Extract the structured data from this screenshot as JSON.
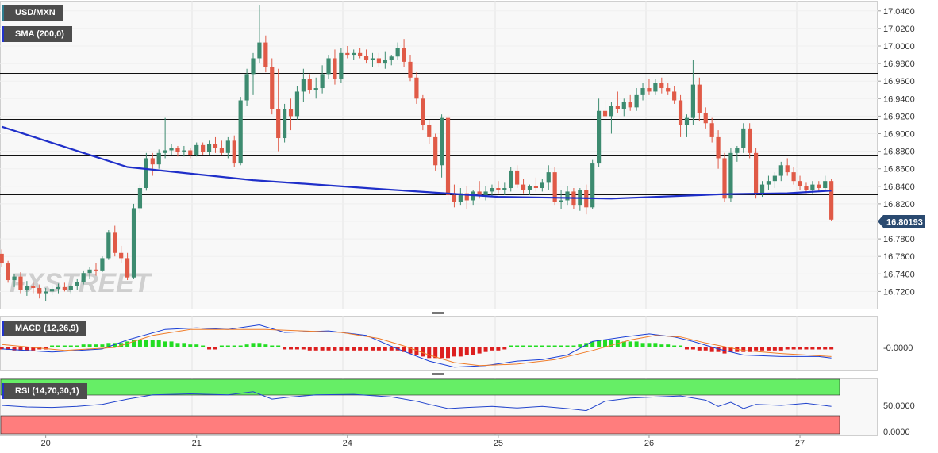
{
  "instrument": "USD/MXN",
  "colors": {
    "bull": "#3d8b70",
    "bear": "#e05a47",
    "sma": "#1f2fc9",
    "macd_line": "#1a3fd6",
    "signal_line": "#f07d2a",
    "hist_pos": "#22dd22",
    "hist_neg": "#dd1f1f",
    "rsi_line": "#2244cc",
    "rsi_upper": "#66ee66",
    "rsi_lower": "#ff7d7d",
    "grid": "#e4e4e4",
    "price_tag": "#2a4a70"
  },
  "main": {
    "legend_symbol": "USD/MXN",
    "legend_sma": "SMA (200,0)",
    "watermark": "FXSTREET",
    "price_tag": "16.80193"
  },
  "macd": {
    "legend": "MACD (12,26,9)",
    "tick_label": "-0.0000"
  },
  "rsi": {
    "legend": "RSI (14,70,30,1)",
    "tick_labels": [
      "50.0000",
      "0.0000"
    ]
  },
  "chart_data": {
    "type": "candlestick",
    "y_axis": {
      "range": [
        16.703,
        17.047
      ],
      "ticks": [
        "17.0400",
        "17.0200",
        "17.0000",
        "16.9800",
        "16.9600",
        "16.9400",
        "16.9200",
        "16.9000",
        "16.8800",
        "16.8600",
        "16.8400",
        "16.8200",
        "16.8000",
        "16.7800",
        "16.7600",
        "16.7400",
        "16.7200"
      ]
    },
    "x_axis": {
      "labels": [
        {
          "label": "20",
          "index": 7
        },
        {
          "label": "21",
          "index": 31
        },
        {
          "label": "24",
          "index": 55
        },
        {
          "label": "25",
          "index": 79
        },
        {
          "label": "26",
          "index": 103
        },
        {
          "label": "27",
          "index": 127
        }
      ]
    },
    "horizontal_levels": [
      16.969,
      16.917,
      16.875,
      16.831,
      16.801
    ],
    "candles": [
      [
        16.763,
        16.768,
        16.748,
        16.752
      ],
      [
        16.752,
        16.755,
        16.73,
        16.733
      ],
      [
        16.733,
        16.74,
        16.725,
        16.737
      ],
      [
        16.737,
        16.742,
        16.718,
        16.722
      ],
      [
        16.722,
        16.732,
        16.715,
        16.726
      ],
      [
        16.726,
        16.73,
        16.718,
        16.724
      ],
      [
        16.724,
        16.728,
        16.712,
        16.718
      ],
      [
        16.718,
        16.724,
        16.709,
        16.72
      ],
      [
        16.72,
        16.727,
        16.716,
        16.723
      ],
      [
        16.723,
        16.729,
        16.718,
        16.725
      ],
      [
        16.725,
        16.73,
        16.72,
        16.722
      ],
      [
        16.722,
        16.728,
        16.718,
        16.726
      ],
      [
        16.726,
        16.734,
        16.722,
        16.731
      ],
      [
        16.731,
        16.744,
        16.728,
        16.741
      ],
      [
        16.741,
        16.748,
        16.734,
        16.745
      ],
      [
        16.745,
        16.752,
        16.738,
        16.744
      ],
      [
        16.744,
        16.76,
        16.742,
        16.758
      ],
      [
        16.758,
        16.79,
        16.756,
        16.787
      ],
      [
        16.787,
        16.795,
        16.76,
        16.764
      ],
      [
        16.764,
        16.772,
        16.752,
        16.758
      ],
      [
        16.758,
        16.764,
        16.733,
        16.736
      ],
      [
        16.736,
        16.82,
        16.734,
        16.815
      ],
      [
        16.815,
        16.842,
        16.81,
        16.838
      ],
      [
        16.838,
        16.878,
        16.835,
        16.872
      ],
      [
        16.872,
        16.878,
        16.852,
        16.865
      ],
      [
        16.865,
        16.882,
        16.86,
        16.878
      ],
      [
        16.878,
        16.918,
        16.872,
        16.881
      ],
      [
        16.881,
        16.888,
        16.876,
        16.884
      ],
      [
        16.884,
        16.886,
        16.874,
        16.879
      ],
      [
        16.879,
        16.886,
        16.874,
        16.881
      ],
      [
        16.881,
        16.884,
        16.872,
        16.876
      ],
      [
        16.876,
        16.89,
        16.874,
        16.887
      ],
      [
        16.887,
        16.89,
        16.876,
        16.879
      ],
      [
        16.879,
        16.892,
        16.876,
        16.888
      ],
      [
        16.888,
        16.896,
        16.878,
        16.884
      ],
      [
        16.884,
        16.892,
        16.876,
        16.878
      ],
      [
        16.878,
        16.896,
        16.872,
        16.892
      ],
      [
        16.892,
        16.898,
        16.862,
        16.866
      ],
      [
        16.866,
        16.942,
        16.864,
        16.938
      ],
      [
        16.938,
        16.974,
        16.932,
        16.968
      ],
      [
        16.968,
        16.992,
        16.944,
        16.986
      ],
      [
        16.986,
        17.047,
        16.98,
        17.004
      ],
      [
        17.004,
        17.012,
        16.97,
        16.976
      ],
      [
        16.976,
        16.986,
        16.922,
        16.928
      ],
      [
        16.928,
        16.974,
        16.88,
        16.895
      ],
      [
        16.895,
        16.934,
        16.89,
        16.928
      ],
      [
        16.928,
        16.94,
        16.904,
        16.92
      ],
      [
        16.92,
        16.954,
        16.916,
        16.948
      ],
      [
        16.948,
        16.974,
        16.936,
        16.962
      ],
      [
        16.962,
        16.968,
        16.946,
        16.95
      ],
      [
        16.95,
        16.964,
        16.94,
        16.952
      ],
      [
        16.952,
        16.978,
        16.946,
        16.968
      ],
      [
        16.968,
        16.99,
        16.962,
        16.986
      ],
      [
        16.986,
        16.996,
        16.956,
        16.962
      ],
      [
        16.962,
        16.998,
        16.958,
        16.992
      ],
      [
        16.992,
        17.0,
        16.986,
        16.99
      ],
      [
        16.99,
        16.996,
        16.984,
        16.992
      ],
      [
        16.992,
        16.998,
        16.986,
        16.989
      ],
      [
        16.989,
        16.996,
        16.98,
        16.984
      ],
      [
        16.984,
        16.992,
        16.976,
        16.986
      ],
      [
        16.986,
        16.992,
        16.976,
        16.98
      ],
      [
        16.98,
        16.994,
        16.974,
        16.984
      ],
      [
        16.984,
        16.99,
        16.978,
        16.988
      ],
      [
        16.988,
        17.004,
        16.984,
        16.998
      ],
      [
        16.998,
        17.008,
        16.976,
        16.982
      ],
      [
        16.982,
        16.99,
        16.96,
        16.964
      ],
      [
        16.964,
        16.97,
        16.934,
        16.94
      ],
      [
        16.94,
        16.944,
        16.904,
        16.91
      ],
      [
        16.91,
        16.916,
        16.888,
        16.896
      ],
      [
        16.896,
        16.9,
        16.858,
        16.864
      ],
      [
        16.864,
        16.922,
        16.85,
        16.918
      ],
      [
        16.918,
        16.922,
        16.822,
        16.83
      ],
      [
        16.83,
        16.842,
        16.816,
        16.822
      ],
      [
        16.822,
        16.838,
        16.818,
        16.832
      ],
      [
        16.832,
        16.84,
        16.814,
        16.824
      ],
      [
        16.824,
        16.836,
        16.818,
        16.834
      ],
      [
        16.834,
        16.846,
        16.826,
        16.83
      ],
      [
        16.83,
        16.84,
        16.824,
        16.834
      ],
      [
        16.834,
        16.842,
        16.828,
        16.838
      ],
      [
        16.838,
        16.846,
        16.832,
        16.836
      ],
      [
        16.836,
        16.844,
        16.83,
        16.838
      ],
      [
        16.838,
        16.862,
        16.834,
        16.858
      ],
      [
        16.858,
        16.864,
        16.838,
        16.842
      ],
      [
        16.842,
        16.848,
        16.832,
        16.836
      ],
      [
        16.836,
        16.842,
        16.83,
        16.84
      ],
      [
        16.84,
        16.85,
        16.834,
        16.838
      ],
      [
        16.838,
        16.848,
        16.834,
        16.844
      ],
      [
        16.844,
        16.864,
        16.836,
        16.856
      ],
      [
        16.856,
        16.862,
        16.818,
        16.822
      ],
      [
        16.822,
        16.836,
        16.814,
        16.824
      ],
      [
        16.824,
        16.84,
        16.818,
        16.834
      ],
      [
        16.834,
        16.838,
        16.814,
        16.818
      ],
      [
        16.818,
        16.838,
        16.812,
        16.836
      ],
      [
        16.836,
        16.842,
        16.808,
        16.816
      ],
      [
        16.816,
        16.87,
        16.814,
        16.866
      ],
      [
        16.866,
        16.94,
        16.862,
        16.926
      ],
      [
        16.926,
        16.938,
        16.914,
        16.92
      ],
      [
        16.92,
        16.936,
        16.9,
        16.932
      ],
      [
        16.932,
        16.948,
        16.924,
        16.928
      ],
      [
        16.928,
        16.94,
        16.92,
        16.936
      ],
      [
        16.936,
        16.944,
        16.926,
        16.93
      ],
      [
        16.93,
        16.952,
        16.926,
        16.944
      ],
      [
        16.944,
        16.958,
        16.938,
        16.952
      ],
      [
        16.952,
        16.962,
        16.944,
        16.948
      ],
      [
        16.948,
        16.962,
        16.944,
        16.958
      ],
      [
        16.958,
        16.964,
        16.946,
        16.952
      ],
      [
        16.952,
        16.958,
        16.944,
        16.948
      ],
      [
        16.948,
        16.954,
        16.934,
        16.938
      ],
      [
        16.938,
        16.944,
        16.896,
        16.91
      ],
      [
        16.91,
        16.922,
        16.896,
        16.918
      ],
      [
        16.918,
        16.984,
        16.91,
        16.956
      ],
      [
        16.956,
        16.964,
        16.914,
        16.924
      ],
      [
        16.924,
        16.93,
        16.906,
        16.912
      ],
      [
        16.912,
        16.918,
        16.89,
        16.896
      ],
      [
        16.896,
        16.904,
        16.86,
        16.872
      ],
      [
        16.872,
        16.878,
        16.822,
        16.826
      ],
      [
        16.826,
        16.884,
        16.822,
        16.878
      ],
      [
        16.878,
        16.886,
        16.868,
        16.884
      ],
      [
        16.884,
        16.912,
        16.878,
        16.906
      ],
      [
        16.906,
        16.912,
        16.872,
        16.878
      ],
      [
        16.878,
        16.884,
        16.826,
        16.832
      ],
      [
        16.832,
        16.846,
        16.828,
        16.842
      ],
      [
        16.842,
        16.852,
        16.836,
        16.846
      ],
      [
        16.846,
        16.856,
        16.838,
        16.852
      ],
      [
        16.852,
        16.868,
        16.846,
        16.864
      ],
      [
        16.864,
        16.872,
        16.852,
        16.856
      ],
      [
        16.856,
        16.862,
        16.842,
        16.846
      ],
      [
        16.846,
        16.852,
        16.836,
        16.84
      ],
      [
        16.84,
        16.844,
        16.832,
        16.836
      ],
      [
        16.836,
        16.846,
        16.832,
        16.842
      ],
      [
        16.842,
        16.846,
        16.834,
        16.838
      ],
      [
        16.838,
        16.852,
        16.834,
        16.846
      ],
      [
        16.846,
        16.848,
        16.8,
        16.802
      ]
    ],
    "sma200": [
      [
        0,
        16.908
      ],
      [
        20,
        16.862
      ],
      [
        40,
        16.847
      ],
      [
        60,
        16.837
      ],
      [
        79,
        16.828
      ],
      [
        97,
        16.826
      ],
      [
        115,
        16.831
      ],
      [
        125,
        16.832
      ],
      [
        132,
        16.835
      ]
    ],
    "macd_line": [
      [
        0,
        -0.01
      ],
      [
        8,
        -0.03
      ],
      [
        16,
        -0.01
      ],
      [
        20,
        0.05
      ],
      [
        26,
        0.12
      ],
      [
        31,
        0.13
      ],
      [
        36,
        0.12
      ],
      [
        41,
        0.15
      ],
      [
        45,
        0.1
      ],
      [
        52,
        0.11
      ],
      [
        58,
        0.08
      ],
      [
        63,
        -0.01
      ],
      [
        68,
        -0.09
      ],
      [
        72,
        -0.13
      ],
      [
        77,
        -0.12
      ],
      [
        82,
        -0.09
      ],
      [
        86,
        -0.08
      ],
      [
        90,
        -0.05
      ],
      [
        94,
        0.04
      ],
      [
        99,
        0.07
      ],
      [
        103,
        0.09
      ],
      [
        107,
        0.07
      ],
      [
        110,
        0.04
      ],
      [
        114,
        -0.01
      ],
      [
        118,
        -0.05
      ],
      [
        124,
        -0.06
      ],
      [
        130,
        -0.06
      ],
      [
        132,
        -0.07
      ]
    ],
    "signal_line": [
      [
        0,
        0.02
      ],
      [
        10,
        -0.02
      ],
      [
        18,
        0.0
      ],
      [
        24,
        0.08
      ],
      [
        30,
        0.12
      ],
      [
        36,
        0.12
      ],
      [
        42,
        0.12
      ],
      [
        48,
        0.11
      ],
      [
        54,
        0.1
      ],
      [
        60,
        0.06
      ],
      [
        64,
        0.01
      ],
      [
        68,
        -0.05
      ],
      [
        72,
        -0.1
      ],
      [
        76,
        -0.12
      ],
      [
        82,
        -0.11
      ],
      [
        88,
        -0.08
      ],
      [
        94,
        -0.02
      ],
      [
        100,
        0.05
      ],
      [
        104,
        0.08
      ],
      [
        108,
        0.07
      ],
      [
        112,
        0.03
      ],
      [
        118,
        -0.02
      ],
      [
        124,
        -0.04
      ],
      [
        132,
        -0.06
      ]
    ],
    "macd_hist": [
      -0.01,
      -0.015,
      -0.02,
      -0.02,
      -0.02,
      -0.02,
      -0.01,
      -0.01,
      0.0,
      0.01,
      0.01,
      0.01,
      0.01,
      0.02,
      0.02,
      0.02,
      0.02,
      0.03,
      0.03,
      0.03,
      0.04,
      0.05,
      0.05,
      0.05,
      0.05,
      0.05,
      0.04,
      0.04,
      0.03,
      0.03,
      0.02,
      0.02,
      0.0,
      -0.01,
      -0.01,
      0.0,
      0.01,
      0.01,
      0.01,
      0.02,
      0.03,
      0.03,
      0.02,
      0.01,
      0.0,
      -0.01,
      -0.01,
      -0.01,
      -0.01,
      -0.02,
      -0.02,
      -0.02,
      -0.02,
      -0.02,
      -0.02,
      -0.02,
      -0.02,
      -0.02,
      -0.02,
      -0.02,
      -0.02,
      -0.02,
      -0.02,
      -0.02,
      -0.03,
      -0.04,
      -0.05,
      -0.06,
      -0.07,
      -0.07,
      -0.07,
      -0.07,
      -0.06,
      -0.06,
      -0.05,
      -0.05,
      -0.04,
      -0.03,
      -0.02,
      -0.02,
      -0.01,
      0.0,
      0.0,
      0.01,
      0.01,
      0.01,
      0.01,
      0.01,
      0.0,
      0.0,
      0.01,
      0.01,
      0.02,
      0.03,
      0.04,
      0.05,
      0.05,
      0.05,
      0.05,
      0.04,
      0.04,
      0.04,
      0.03,
      0.03,
      0.03,
      0.02,
      0.02,
      0.01,
      0.0,
      -0.01,
      -0.01,
      -0.02,
      -0.02,
      -0.03,
      -0.03,
      -0.04,
      -0.03,
      -0.03,
      -0.03,
      -0.03,
      -0.02,
      -0.02,
      -0.02,
      -0.02,
      -0.02,
      -0.01,
      -0.01,
      -0.01,
      -0.01,
      -0.01,
      -0.01,
      -0.01,
      -0.01
    ],
    "rsi_line": [
      [
        0,
        50
      ],
      [
        4,
        47
      ],
      [
        8,
        46
      ],
      [
        12,
        48
      ],
      [
        16,
        52
      ],
      [
        20,
        62
      ],
      [
        24,
        70
      ],
      [
        30,
        72
      ],
      [
        36,
        70
      ],
      [
        40,
        76
      ],
      [
        43,
        62
      ],
      [
        46,
        66
      ],
      [
        50,
        70
      ],
      [
        56,
        71
      ],
      [
        62,
        66
      ],
      [
        66,
        58
      ],
      [
        68,
        52
      ],
      [
        71,
        44
      ],
      [
        74,
        46
      ],
      [
        78,
        48
      ],
      [
        82,
        45
      ],
      [
        86,
        48
      ],
      [
        90,
        44
      ],
      [
        93,
        40
      ],
      [
        96,
        58
      ],
      [
        100,
        64
      ],
      [
        104,
        66
      ],
      [
        108,
        68
      ],
      [
        112,
        60
      ],
      [
        114,
        48
      ],
      [
        116,
        56
      ],
      [
        118,
        44
      ],
      [
        120,
        52
      ],
      [
        124,
        50
      ],
      [
        128,
        54
      ],
      [
        132,
        48
      ]
    ]
  }
}
